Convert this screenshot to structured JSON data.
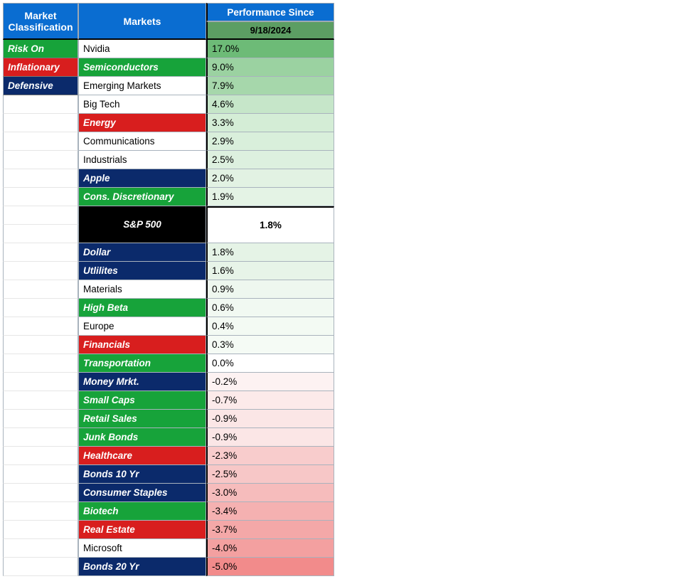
{
  "headers": {
    "classification": "Market Classification",
    "markets": "Markets",
    "performance": "Performance Since",
    "date": "9/18/2024"
  },
  "legend": [
    {
      "label": "Risk On",
      "bg": "#17a33a"
    },
    {
      "label": "Inflationary",
      "bg": "#d81e1e"
    },
    {
      "label": "Defensive",
      "bg": "#0b2a6b"
    }
  ],
  "colors": {
    "header_bg": "#0a6dd1",
    "header_fg": "#ffffff",
    "subheader_bg": "#5c9e63",
    "risk_on": "#17a33a",
    "inflationary": "#d81e1e",
    "defensive": "#0b2a6b",
    "plain_bg": "#ffffff",
    "plain_fg": "#000000",
    "benchmark_bg": "#000000",
    "benchmark_fg": "#ffffff"
  },
  "heatmap": {
    "pos_max_color": "#6dbb77",
    "pos_min_color": "#e9f5ea",
    "neg_min_color": "#fdeeee",
    "neg_max_color": "#f28b8b",
    "value_max": 17.0,
    "value_min": -5.0
  },
  "benchmark": {
    "label": "S&P 500",
    "value": "1.8%"
  },
  "rows_above": [
    {
      "label": "Nvidia",
      "class": "plain",
      "value": "17.0%",
      "perf_bg": "#6dbb77"
    },
    {
      "label": "Semiconductors",
      "class": "risk_on",
      "value": "9.0%",
      "perf_bg": "#9bd2a1"
    },
    {
      "label": "Emerging Markets",
      "class": "plain",
      "value": "7.9%",
      "perf_bg": "#a6d7ab"
    },
    {
      "label": "Big Tech",
      "class": "plain",
      "value": "4.6%",
      "perf_bg": "#c6e6c9"
    },
    {
      "label": "Energy",
      "class": "inflationary",
      "value": "3.3%",
      "perf_bg": "#d4edd6"
    },
    {
      "label": "Communications",
      "class": "plain",
      "value": "2.9%",
      "perf_bg": "#d9efdb"
    },
    {
      "label": "Industrials",
      "class": "plain",
      "value": "2.5%",
      "perf_bg": "#ddf0df"
    },
    {
      "label": "Apple",
      "class": "defensive",
      "value": "2.0%",
      "perf_bg": "#e2f2e3"
    },
    {
      "label": "Cons. Discretionary",
      "class": "risk_on",
      "value": "1.9%",
      "perf_bg": "#e4f3e5"
    }
  ],
  "rows_below": [
    {
      "label": "Dollar",
      "class": "defensive",
      "value": "1.8%",
      "perf_bg": "#e5f3e6"
    },
    {
      "label": "Utlilites",
      "class": "defensive",
      "value": "1.6%",
      "perf_bg": "#e7f4e8"
    },
    {
      "label": "Materials",
      "class": "plain",
      "value": "0.9%",
      "perf_bg": "#eef7ef"
    },
    {
      "label": "High Beta",
      "class": "risk_on",
      "value": "0.6%",
      "perf_bg": "#f1f9f2"
    },
    {
      "label": "Europe",
      "class": "plain",
      "value": "0.4%",
      "perf_bg": "#f3faf3"
    },
    {
      "label": "Financials",
      "class": "inflationary",
      "value": "0.3%",
      "perf_bg": "#f5fbf5"
    },
    {
      "label": "Transportation",
      "class": "risk_on",
      "value": "0.0%",
      "perf_bg": "#ffffff"
    },
    {
      "label": "Money Mrkt.",
      "class": "defensive",
      "value": "-0.2%",
      "perf_bg": "#fdf2f2"
    },
    {
      "label": "Small Caps",
      "class": "risk_on",
      "value": "-0.7%",
      "perf_bg": "#fceaea"
    },
    {
      "label": "Retail Sales",
      "class": "risk_on",
      "value": "-0.9%",
      "perf_bg": "#fbe6e6"
    },
    {
      "label": "Junk Bonds",
      "class": "risk_on",
      "value": "-0.9%",
      "perf_bg": "#fbe6e6"
    },
    {
      "label": "Healthcare",
      "class": "inflationary",
      "value": "-2.3%",
      "perf_bg": "#f8cccc"
    },
    {
      "label": "Bonds 10 Yr",
      "class": "defensive",
      "value": "-2.5%",
      "perf_bg": "#f7c7c7"
    },
    {
      "label": "Consumer Staples",
      "class": "defensive",
      "value": "-3.0%",
      "perf_bg": "#f6bcbc"
    },
    {
      "label": "Biotech",
      "class": "risk_on",
      "value": "-3.4%",
      "perf_bg": "#f5b1b1"
    },
    {
      "label": "Real Estate",
      "class": "inflationary",
      "value": "-3.7%",
      "perf_bg": "#f4a8a8"
    },
    {
      "label": "Microsoft",
      "class": "plain",
      "value": "-4.0%",
      "perf_bg": "#f3a0a0"
    },
    {
      "label": "Bonds 20 Yr",
      "class": "defensive",
      "value": "-5.0%",
      "perf_bg": "#f28b8b"
    }
  ]
}
